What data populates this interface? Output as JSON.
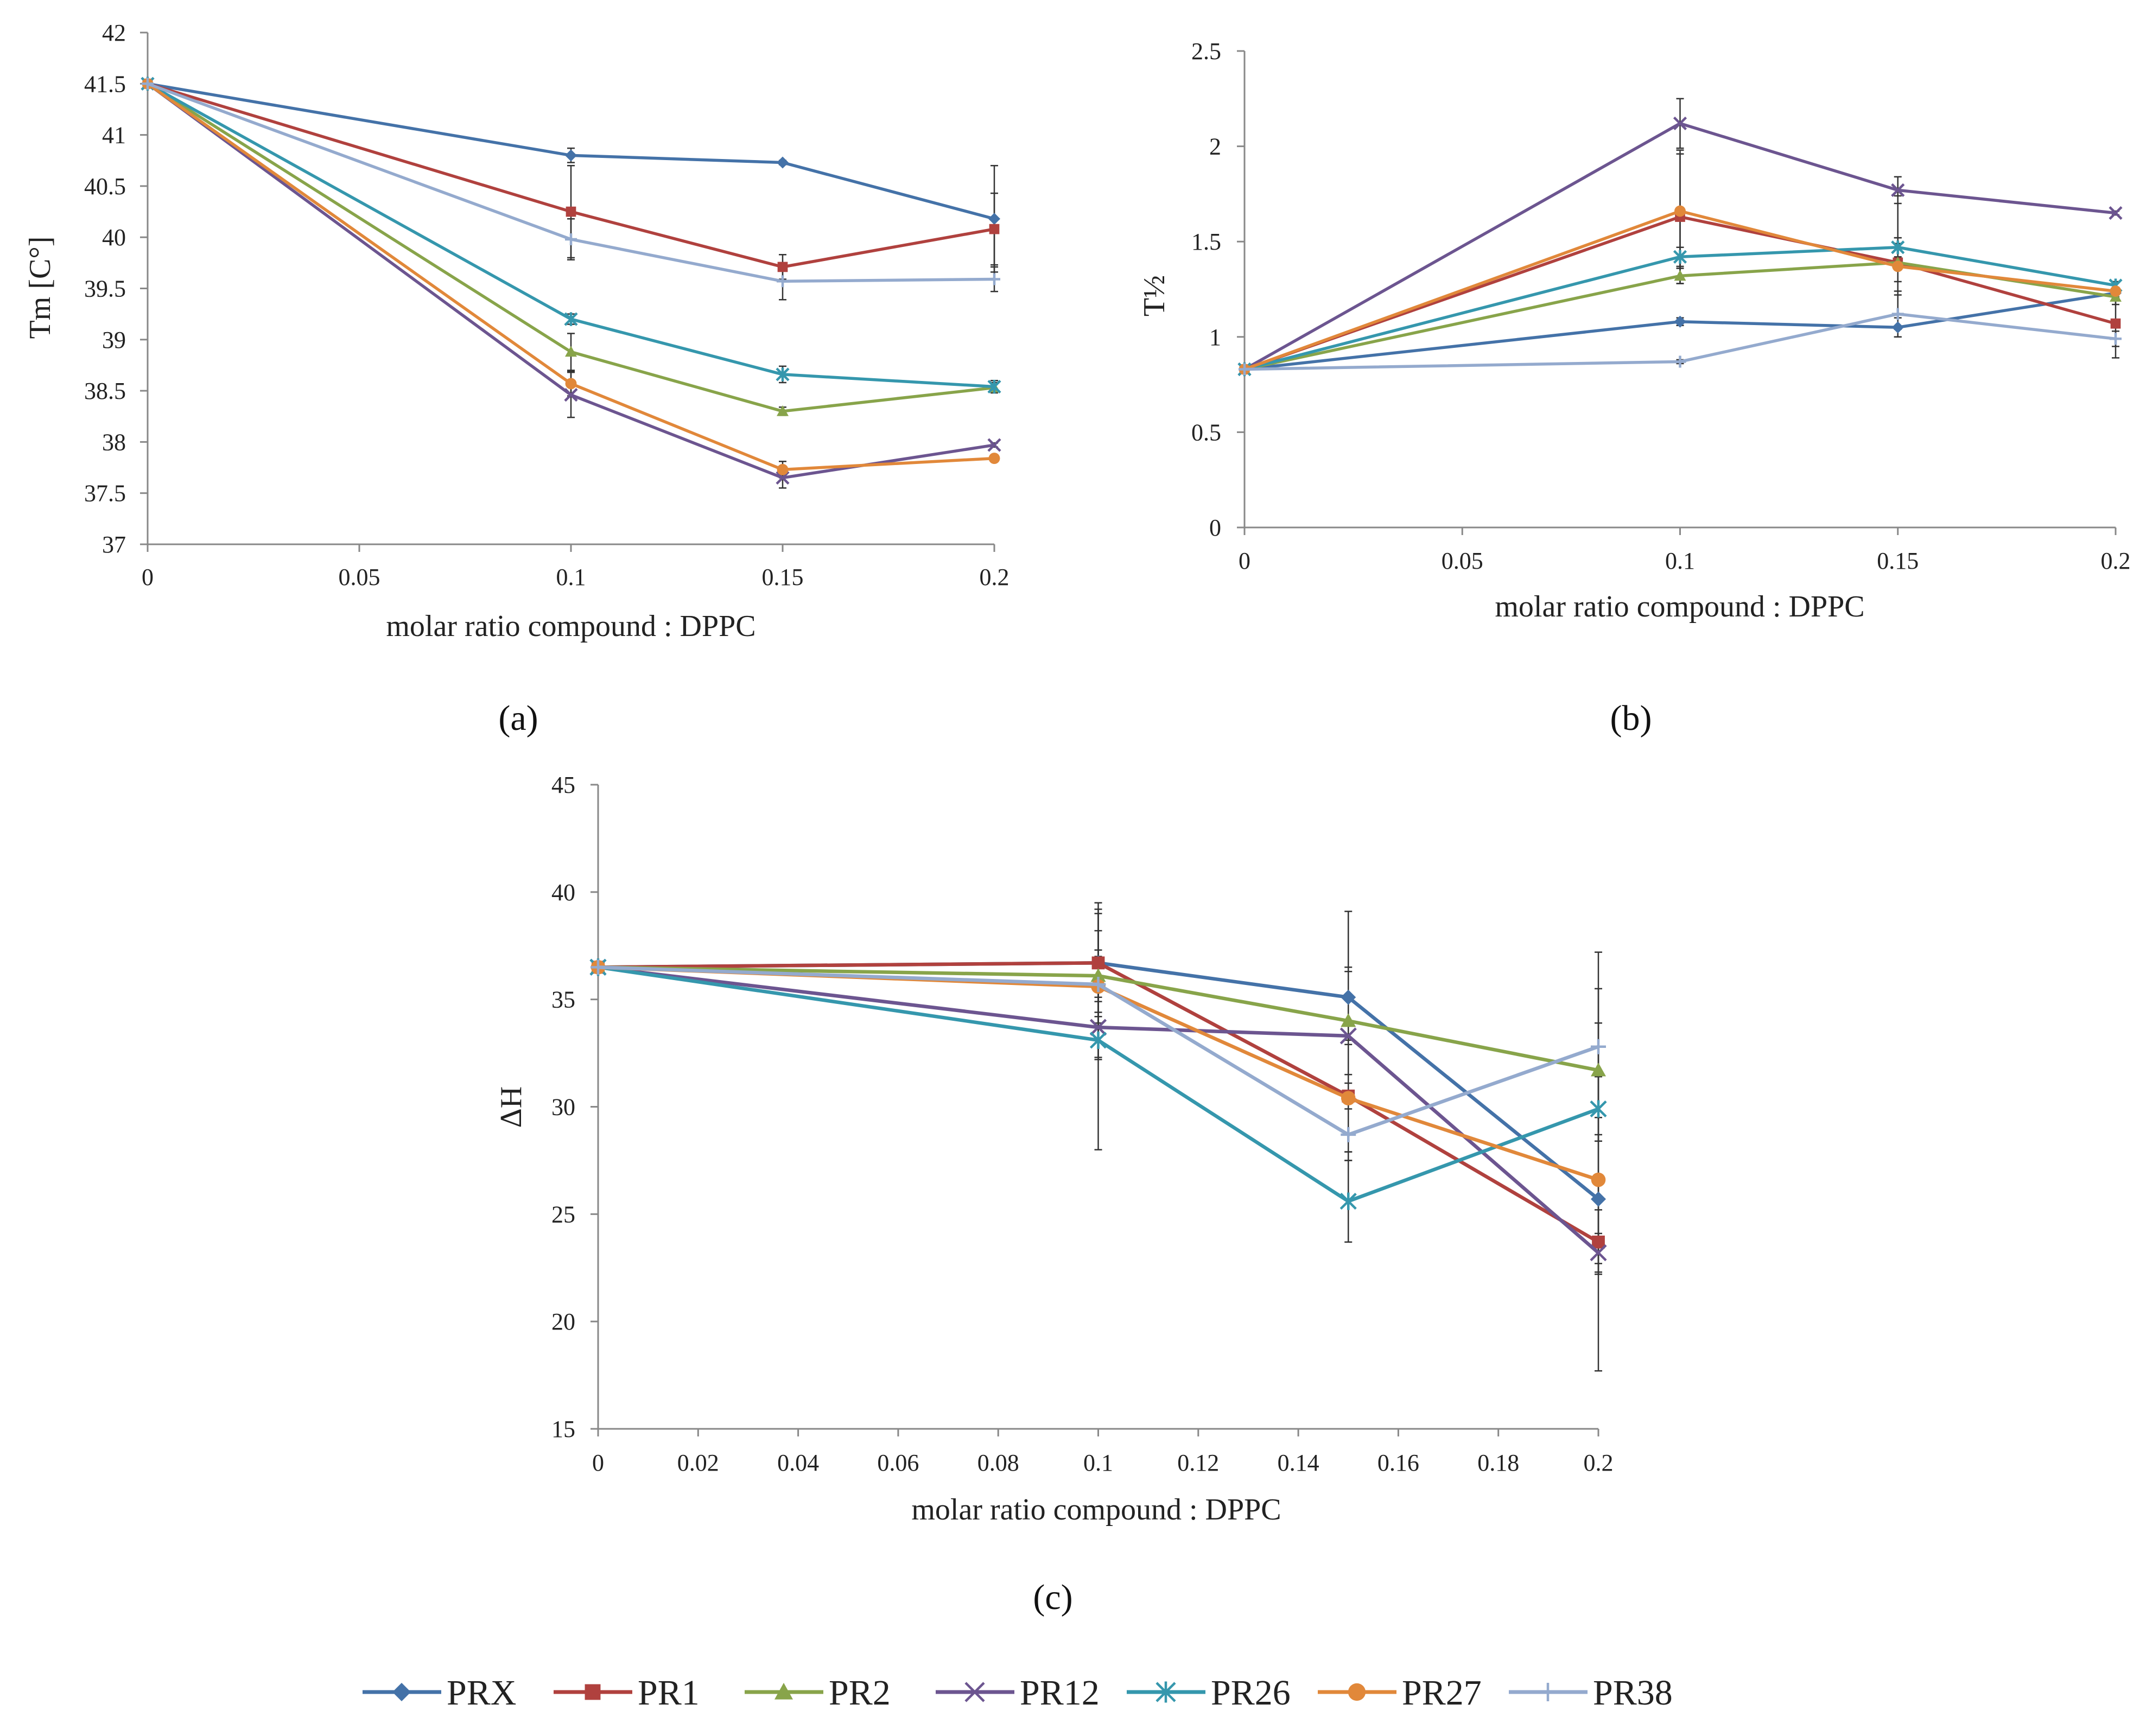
{
  "colors": {
    "PRX": "#4472a8",
    "PR1": "#b0413e",
    "PR2": "#88a44a",
    "PR12": "#6c5590",
    "PR26": "#3597ad",
    "PR27": "#e1883a",
    "PR38": "#94aace"
  },
  "legend": {
    "entries": [
      {
        "name": "PRX",
        "marker": "diamond"
      },
      {
        "name": "PR1",
        "marker": "square"
      },
      {
        "name": "PR2",
        "marker": "triangle"
      },
      {
        "name": "PR12",
        "marker": "x"
      },
      {
        "name": "PR26",
        "marker": "asterisk"
      },
      {
        "name": "PR27",
        "marker": "circle"
      },
      {
        "name": "PR38",
        "marker": "plus"
      }
    ]
  },
  "chart_data": [
    {
      "id": "a",
      "type": "line",
      "panel_label": "(a)",
      "title": "",
      "xlabel": "molar ratio compound : DPPC",
      "ylabel": "Tm [C°]",
      "xlim": [
        0,
        0.2
      ],
      "ylim": [
        37,
        42
      ],
      "xticks": [
        0,
        0.05,
        0.1,
        0.15,
        0.2
      ],
      "xtick_labels": [
        "0",
        "0.05",
        "0.1",
        "0.15",
        "0.2"
      ],
      "yticks": [
        37,
        37.5,
        38,
        38.5,
        39,
        39.5,
        40,
        40.5,
        41,
        41.5,
        42
      ],
      "ytick_labels": [
        "37",
        "37.5",
        "38",
        "38.5",
        "39",
        "39.5",
        "40",
        "40.5",
        "41",
        "41.5",
        "42"
      ],
      "grid": false,
      "series": [
        {
          "name": "PRX",
          "marker": "diamond",
          "x": [
            0,
            0.1,
            0.15,
            0.2
          ],
          "y": [
            41.5,
            40.8,
            40.73,
            40.18
          ],
          "err": [
            0,
            0.07,
            0.02,
            0.52
          ]
        },
        {
          "name": "PR1",
          "marker": "square",
          "x": [
            0,
            0.1,
            0.15,
            0.2
          ],
          "y": [
            41.5,
            40.25,
            39.71,
            40.08
          ],
          "err": [
            0,
            0.45,
            0.12,
            0.35
          ]
        },
        {
          "name": "PR2",
          "marker": "triangle",
          "x": [
            0,
            0.1,
            0.15,
            0.2
          ],
          "y": [
            41.5,
            38.88,
            38.3,
            38.53
          ],
          "err": [
            0,
            0.18,
            0.04,
            0.05
          ]
        },
        {
          "name": "PR12",
          "marker": "x",
          "x": [
            0,
            0.1,
            0.15,
            0.2
          ],
          "y": [
            41.5,
            38.46,
            37.65,
            37.97
          ],
          "err": [
            0,
            0.22,
            0.1,
            0.02
          ]
        },
        {
          "name": "PR26",
          "marker": "asterisk",
          "x": [
            0,
            0.1,
            0.15,
            0.2
          ],
          "y": [
            41.5,
            39.2,
            38.66,
            38.54
          ],
          "err": [
            0,
            0.05,
            0.08,
            0.06
          ]
        },
        {
          "name": "PR27",
          "marker": "circle",
          "x": [
            0,
            0.1,
            0.15,
            0.2
          ],
          "y": [
            41.5,
            38.57,
            37.73,
            37.84
          ],
          "err": [
            0,
            0.12,
            0.08,
            0.02
          ]
        },
        {
          "name": "PR38",
          "marker": "plus",
          "x": [
            0,
            0.1,
            0.15,
            0.2
          ],
          "y": [
            41.5,
            39.98,
            39.57,
            39.59
          ],
          "err": [
            0,
            0.2,
            0.18,
            0.12
          ]
        }
      ]
    },
    {
      "id": "b",
      "type": "line",
      "panel_label": "(b)",
      "title": "",
      "xlabel": "molar ratio compound : DPPC",
      "ylabel": "T½",
      "xlim": [
        0,
        0.2
      ],
      "ylim": [
        0,
        2.5
      ],
      "xticks": [
        0,
        0.05,
        0.1,
        0.15,
        0.2
      ],
      "xtick_labels": [
        "0",
        "0.05",
        "0.1",
        "0.15",
        "0.2"
      ],
      "yticks": [
        0,
        0.5,
        1,
        1.5,
        2,
        2.5
      ],
      "ytick_labels": [
        "0",
        "0.5",
        "1",
        "1.5",
        "2",
        "2.5"
      ],
      "grid": false,
      "series": [
        {
          "name": "PRX",
          "marker": "diamond",
          "x": [
            0,
            0.1,
            0.15,
            0.2
          ],
          "y": [
            0.83,
            1.08,
            1.05,
            1.23
          ],
          "err": [
            0,
            0.02,
            0.05,
            0.02
          ]
        },
        {
          "name": "PR1",
          "marker": "square",
          "x": [
            0,
            0.1,
            0.15,
            0.2
          ],
          "y": [
            0.83,
            1.63,
            1.39,
            1.07
          ],
          "err": [
            0,
            0.35,
            0.35,
            0.18
          ]
        },
        {
          "name": "PR2",
          "marker": "triangle",
          "x": [
            0,
            0.1,
            0.15,
            0.2
          ],
          "y": [
            0.83,
            1.32,
            1.39,
            1.21
          ],
          "err": [
            0,
            0.04,
            0.1,
            0.04
          ]
        },
        {
          "name": "PR12",
          "marker": "x",
          "x": [
            0,
            0.1,
            0.15,
            0.2
          ],
          "y": [
            0.83,
            2.12,
            1.77,
            1.65
          ],
          "err": [
            0,
            0.13,
            0.07,
            0.01
          ]
        },
        {
          "name": "PR26",
          "marker": "asterisk",
          "x": [
            0,
            0.1,
            0.15,
            0.2
          ],
          "y": [
            0.83,
            1.42,
            1.47,
            1.27
          ],
          "err": [
            0,
            0.05,
            0.05,
            0.02
          ]
        },
        {
          "name": "PR27",
          "marker": "circle",
          "x": [
            0,
            0.1,
            0.15,
            0.2
          ],
          "y": [
            0.83,
            1.66,
            1.37,
            1.24
          ],
          "err": [
            0,
            0.3,
            0.15,
            0.02
          ]
        },
        {
          "name": "PR38",
          "marker": "plus",
          "x": [
            0,
            0.1,
            0.15,
            0.2
          ],
          "y": [
            0.83,
            0.87,
            1.12,
            0.99
          ],
          "err": [
            0,
            0.01,
            0.12,
            0.04
          ]
        }
      ]
    },
    {
      "id": "c",
      "type": "line",
      "panel_label": "(c)",
      "title": "",
      "xlabel": "molar ratio compound : DPPC",
      "ylabel": "ΔH",
      "xlim": [
        0,
        0.2
      ],
      "ylim": [
        15,
        45
      ],
      "xticks": [
        0,
        0.02,
        0.04,
        0.06,
        0.08,
        0.1,
        0.12,
        0.14,
        0.16,
        0.18,
        0.2
      ],
      "xtick_labels": [
        "0",
        "0.02",
        "0.04",
        "0.06",
        "0.08",
        "0.1",
        "0.12",
        "0.14",
        "0.16",
        "0.18",
        "0.2"
      ],
      "yticks": [
        15,
        20,
        25,
        30,
        35,
        40,
        45
      ],
      "ytick_labels": [
        "15",
        "20",
        "25",
        "30",
        "35",
        "40",
        "45"
      ],
      "grid": false,
      "series": [
        {
          "name": "PRX",
          "marker": "diamond",
          "x": [
            0,
            0.1,
            0.15,
            0.2
          ],
          "y": [
            36.5,
            36.7,
            35.1,
            25.7
          ],
          "err": [
            0,
            2.8,
            4.0,
            3.0
          ]
        },
        {
          "name": "PR1",
          "marker": "square",
          "x": [
            0,
            0.1,
            0.15,
            0.2
          ],
          "y": [
            36.5,
            36.7,
            30.5,
            23.7
          ],
          "err": [
            0,
            2.5,
            2.6,
            1.5
          ]
        },
        {
          "name": "PR2",
          "marker": "triangle",
          "x": [
            0,
            0.1,
            0.15,
            0.2
          ],
          "y": [
            36.5,
            36.1,
            34.0,
            31.7
          ],
          "err": [
            0,
            1.2,
            2.5,
            2.2
          ]
        },
        {
          "name": "PR12",
          "marker": "x",
          "x": [
            0,
            0.1,
            0.15,
            0.2
          ],
          "y": [
            36.5,
            33.7,
            33.3,
            23.2
          ],
          "err": [
            0,
            1.4,
            3.0,
            0.9
          ]
        },
        {
          "name": "PR26",
          "marker": "asterisk",
          "x": [
            0,
            0.1,
            0.15,
            0.2
          ],
          "y": [
            36.5,
            33.1,
            25.6,
            29.9
          ],
          "err": [
            0,
            5.1,
            1.9,
            1.5
          ]
        },
        {
          "name": "PR27",
          "marker": "circle",
          "x": [
            0,
            0.1,
            0.15,
            0.2
          ],
          "y": [
            36.5,
            35.6,
            30.4,
            26.6
          ],
          "err": [
            0,
            3.4,
            2.5,
            8.9
          ]
        },
        {
          "name": "PR38",
          "marker": "plus",
          "x": [
            0,
            0.1,
            0.15,
            0.2
          ],
          "y": [
            36.5,
            35.7,
            28.7,
            32.8
          ],
          "err": [
            0,
            1.3,
            1.2,
            4.4
          ]
        }
      ]
    }
  ]
}
